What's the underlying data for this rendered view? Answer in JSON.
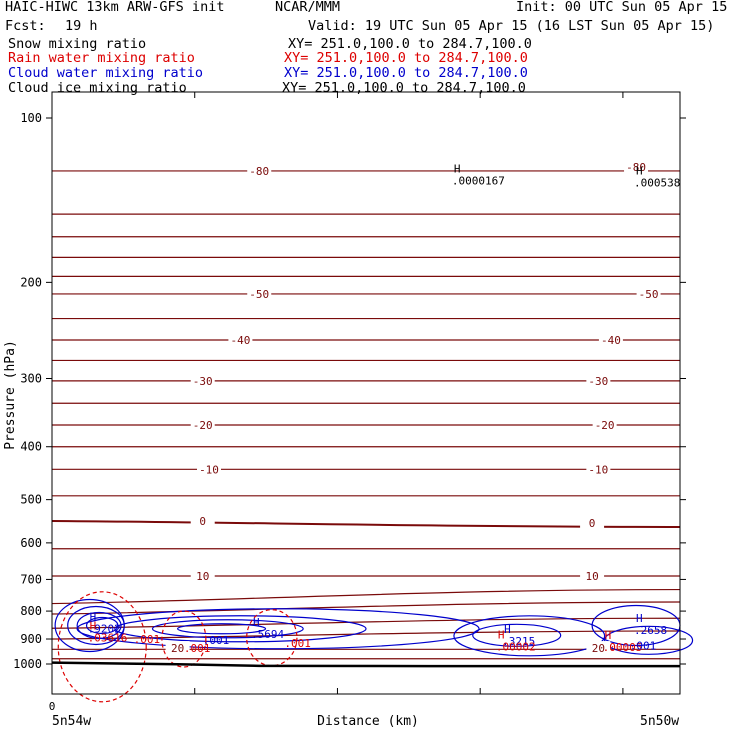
{
  "header": {
    "model": "HAIC-HIWC 13km ARW-GFS init",
    "org": "NCAR/MMM",
    "init": "Init: 00 UTC Sun 05 Apr 15",
    "fcst_label": "Fcst:",
    "fcst_value": "19 h",
    "valid": "Valid: 19 UTC Sun 05 Apr 15 (16 LST Sun 05 Apr 15)"
  },
  "fields": [
    {
      "name": "Snow mixing ratio",
      "xy": "XY= 251.0,100.0 to 284.7,100.0",
      "color": "#000000"
    },
    {
      "name": "Rain water mixing ratio",
      "xy": "XY= 251.0,100.0 to 284.7,100.0",
      "color": "#dd0000"
    },
    {
      "name": "Cloud water mixing ratio",
      "xy": "XY= 251.0,100.0 to 284.7,100.0",
      "color": "#0000cc"
    },
    {
      "name": "Cloud ice mixing ratio",
      "xy": "XY= 251.0,100.0 to 284.7,100.0",
      "color": "#000000"
    }
  ],
  "chart_data": {
    "type": "cross-section contour",
    "ylabel": "Pressure (hPa)",
    "xlabel": "Distance (km)",
    "y_axis": "pressure, reversed, log scale",
    "ylim": [
      1050,
      75
    ],
    "yticks": [
      100,
      200,
      300,
      400,
      500,
      600,
      700,
      800,
      900,
      1000
    ],
    "x_tick_label": "0",
    "x_left_label": "5n54w",
    "x_right_label": "5n50w",
    "colors": {
      "temperature": "#7a0a0a",
      "cloud_water": "#0000cc",
      "rain_water": "#dd0000",
      "terrain": "#000000"
    },
    "temperature_labels": [
      {
        "text": "-80",
        "p": 125,
        "x": 0.33
      },
      {
        "text": "-80",
        "p": 123,
        "x": 0.93
      },
      {
        "text": "-50",
        "p": 210,
        "x": 0.33
      },
      {
        "text": "-50",
        "p": 210,
        "x": 0.95
      },
      {
        "text": "-40",
        "p": 255,
        "x": 0.3
      },
      {
        "text": "-40",
        "p": 255,
        "x": 0.89
      },
      {
        "text": "-30",
        "p": 303,
        "x": 0.24
      },
      {
        "text": "-30",
        "p": 303,
        "x": 0.87
      },
      {
        "text": "-20",
        "p": 365,
        "x": 0.24
      },
      {
        "text": "-20",
        "p": 365,
        "x": 0.88
      },
      {
        "text": "-10",
        "p": 440,
        "x": 0.25
      },
      {
        "text": "-10",
        "p": 440,
        "x": 0.87
      },
      {
        "text": "0",
        "p": 547,
        "x": 0.24
      },
      {
        "text": "0",
        "p": 552,
        "x": 0.86
      },
      {
        "text": "10",
        "p": 690,
        "x": 0.24
      },
      {
        "text": "10",
        "p": 690,
        "x": 0.86
      },
      {
        "text": "20",
        "p": 935,
        "x": 0.2
      },
      {
        "text": "20",
        "p": 935,
        "x": 0.87
      }
    ],
    "maxima_labels": [
      {
        "marker": "H",
        "value": ".0000167",
        "color": "#000000",
        "p": 127,
        "x": 0.64
      },
      {
        "marker": "H",
        "value": ".000538",
        "color": "#000000",
        "p": 128,
        "x": 0.93
      },
      {
        "marker": "H",
        "value": ".9202",
        "color": "#0000cc",
        "p": 840,
        "x": 0.06
      },
      {
        "marker": "H",
        "value": ".03616",
        "color": "#dd0000",
        "p": 872,
        "x": 0.06
      },
      {
        "marker": "H",
        "value": ".5694",
        "color": "#0000cc",
        "p": 860,
        "x": 0.32
      },
      {
        "marker": "H",
        "value": ".2658",
        "color": "#0000cc",
        "p": 845,
        "x": 0.93
      },
      {
        "marker": "H",
        "value": ".3215",
        "color": "#0000cc",
        "p": 885,
        "x": 0.72
      },
      {
        "marker": "H",
        "value": ".00002",
        "color": "#dd0000",
        "p": 905,
        "x": 0.71
      },
      {
        "marker": "H",
        "value": ".00005",
        "color": "#dd0000",
        "p": 908,
        "x": 0.88
      }
    ],
    "contour_labels": [
      {
        "text": ".001",
        "color": "#dd0000",
        "p": 900,
        "x": 0.13
      },
      {
        "text": ".001",
        "color": "#0000cc",
        "p": 903,
        "x": 0.24
      },
      {
        "text": ".001",
        "color": "#dd0000",
        "p": 915,
        "x": 0.37
      },
      {
        "text": ".001",
        "color": "#dd0000",
        "p": 935,
        "x": 0.21
      },
      {
        "text": ".001",
        "color": "#0000cc",
        "p": 925,
        "x": 0.92
      }
    ],
    "temperature_isotherm_levels": [
      125,
      150,
      165,
      180,
      195,
      210,
      233,
      255,
      278,
      303,
      333,
      365,
      400,
      440,
      492,
      547,
      615,
      690,
      775,
      810,
      860,
      900,
      940,
      978
    ],
    "temperature_isotherm_slopes": {
      "547": 6,
      "775": -14,
      "810": -12,
      "860": -10,
      "900": -8
    }
  }
}
